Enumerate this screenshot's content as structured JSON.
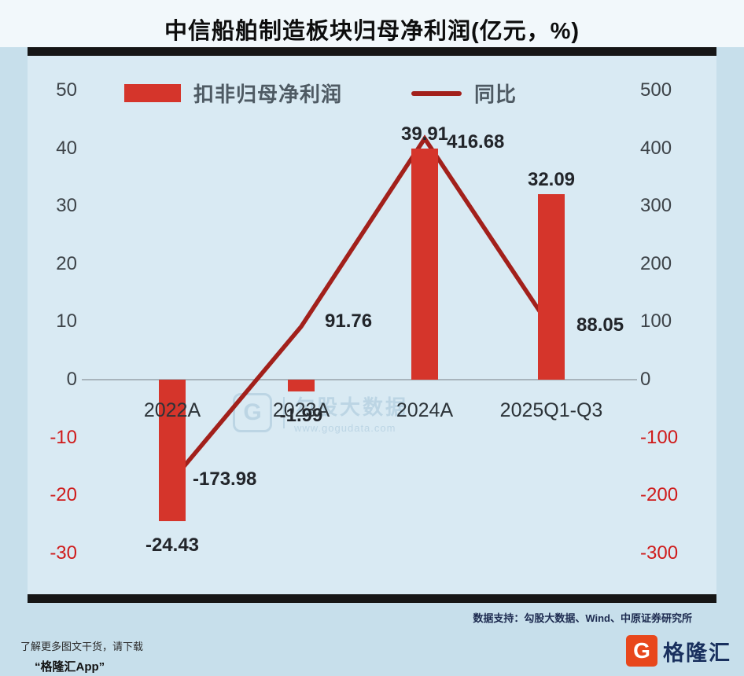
{
  "title": "中信船舶制造板块归母净利润(亿元，%)",
  "chart_data": {
    "type": "bar",
    "subtype": "combo-bar-line-dual-axis",
    "categories": [
      "2022A",
      "2023A",
      "2024A",
      "2025Q1-Q3"
    ],
    "series": [
      {
        "name": "扣非归母净利润",
        "type": "bar",
        "axis": "left",
        "values": [
          -24.43,
          -1.99,
          39.91,
          32.09
        ]
      },
      {
        "name": "同比",
        "type": "line",
        "axis": "right",
        "values": [
          -173.98,
          91.76,
          416.68,
          88.05
        ]
      }
    ],
    "left_axis": {
      "ticks": [
        50,
        40,
        30,
        20,
        10,
        0,
        -10,
        -20,
        -30
      ],
      "min": -30,
      "max": 50
    },
    "right_axis": {
      "ticks": [
        500,
        400,
        300,
        200,
        100,
        0,
        -100,
        -200,
        -300
      ],
      "min": -300,
      "max": 500
    },
    "legend_position": "top",
    "grid": "zero-line-only"
  },
  "colors": {
    "bar": "#d5352b",
    "line": "#a2201b",
    "negative_tick": "#cf1b1b",
    "positive_tick": "#3d4348",
    "background": "#c7dfeb",
    "plot_background": "#d9eaf3"
  },
  "watermark": {
    "logo_letter": "G",
    "brand": "勾股大数据",
    "url": "www.gogudata.com"
  },
  "footer": {
    "source": "数据支持：勾股大数据、Wind、中原证券研究所"
  },
  "promo": {
    "line1": "了解更多图文干货，请下载",
    "line2": "“格隆汇App”"
  },
  "brand_logo": {
    "letter": "G",
    "text": "格隆汇"
  }
}
